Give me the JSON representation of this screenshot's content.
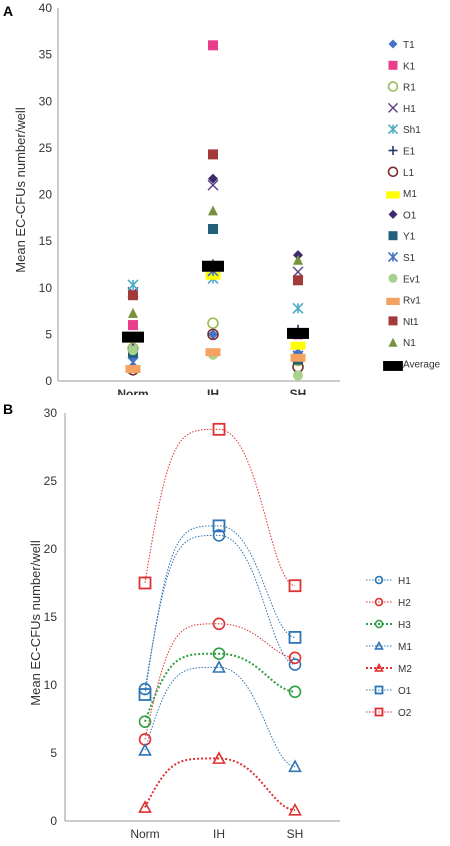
{
  "chart_data": [
    {
      "panel_letter": "A",
      "type": "scatter",
      "title": "",
      "xlabel": "",
      "ylabel": "Mean EC-CFUs number/well",
      "categories": [
        "Norm",
        "IH",
        "SH"
      ],
      "ylim": [
        0,
        40
      ],
      "yticks": [
        0,
        5,
        10,
        15,
        20,
        25,
        30,
        35,
        40
      ],
      "grid": false,
      "legend_position": "right",
      "series": [
        {
          "name": "T1",
          "marker": "diamond",
          "color": "#4472c4",
          "values": [
            2.5,
            5.0,
            3.0
          ]
        },
        {
          "name": "K1",
          "marker": "square",
          "color": "#e83e8c",
          "values": [
            6.0,
            36.0,
            5.0
          ]
        },
        {
          "name": "R1",
          "marker": "circle-open",
          "color": "#9bbb59",
          "values": [
            3.5,
            6.2,
            2.2
          ]
        },
        {
          "name": "H1",
          "marker": "x",
          "color": "#5b3f8a",
          "values": [
            9.5,
            21.0,
            11.7
          ]
        },
        {
          "name": "Sh1",
          "marker": "asterisk",
          "color": "#4bacc6",
          "values": [
            10.3,
            11.0,
            7.8
          ]
        },
        {
          "name": "E1",
          "marker": "plus",
          "color": "#1f3864",
          "values": [
            3.2,
            12.5,
            5.5
          ]
        },
        {
          "name": "L1",
          "marker": "circle-open",
          "color": "#7b2c2c",
          "values": [
            1.2,
            5.0,
            1.5
          ]
        },
        {
          "name": "M1",
          "marker": "dash",
          "color": "#ffff00",
          "values": [
            4.8,
            11.5,
            4.0
          ]
        },
        {
          "name": "O1",
          "marker": "diamond",
          "color": "#3f2a6b",
          "values": [
            3.5,
            21.7,
            13.5
          ]
        },
        {
          "name": "Y1",
          "marker": "square",
          "color": "#215f7a",
          "values": [
            3.0,
            16.3,
            2.3
          ]
        },
        {
          "name": "S1",
          "marker": "asterisk",
          "color": "#4472c4",
          "values": [
            2.0,
            11.8,
            2.7
          ]
        },
        {
          "name": "Ev1",
          "marker": "circle",
          "color": "#a9d18e",
          "values": [
            3.3,
            2.8,
            0.6
          ]
        },
        {
          "name": "Rv1",
          "marker": "dash",
          "color": "#f4a261",
          "values": [
            1.5,
            3.3,
            2.7
          ]
        },
        {
          "name": "Nt1",
          "marker": "square",
          "color": "#a33a3a",
          "values": [
            9.2,
            24.3,
            10.8
          ]
        },
        {
          "name": "N1",
          "marker": "triangle",
          "color": "#76923c",
          "values": [
            7.3,
            18.3,
            13.0
          ]
        },
        {
          "name": "Average",
          "marker": "bar",
          "color": "#000000",
          "values": [
            5.0,
            12.6,
            5.4
          ]
        }
      ]
    },
    {
      "panel_letter": "B",
      "type": "line",
      "title": "",
      "xlabel": "",
      "ylabel": "Mean EC-CFUs number/well",
      "categories": [
        "Norm",
        "IH",
        "SH"
      ],
      "ylim": [
        0,
        30
      ],
      "yticks": [
        0,
        5,
        10,
        15,
        20,
        25,
        30
      ],
      "grid": false,
      "legend_position": "right",
      "series": [
        {
          "name": "H1",
          "marker": "circle-open",
          "color": "#2e75b6",
          "line": "dotted",
          "values": [
            9.7,
            21.0,
            11.5
          ]
        },
        {
          "name": "H2",
          "marker": "circle-open",
          "color": "#e03030",
          "line": "dotted",
          "values": [
            6.0,
            14.5,
            12.0
          ]
        },
        {
          "name": "H3",
          "marker": "circle-open",
          "color": "#2ea043",
          "line": "dotted-heavy",
          "values": [
            7.3,
            12.3,
            9.5
          ]
        },
        {
          "name": "M1",
          "marker": "triangle-open",
          "color": "#2e75b6",
          "line": "dotted",
          "values": [
            5.2,
            11.3,
            4.0
          ]
        },
        {
          "name": "M2",
          "marker": "triangle-open",
          "color": "#e03030",
          "line": "dotted-heavy",
          "values": [
            1.0,
            4.6,
            0.8
          ]
        },
        {
          "name": "O1",
          "marker": "square-open",
          "color": "#2e75b6",
          "line": "dotted",
          "values": [
            9.3,
            21.7,
            13.5
          ]
        },
        {
          "name": "O2",
          "marker": "square-open",
          "color": "#e03030",
          "line": "dotted",
          "values": [
            17.5,
            28.8,
            17.3
          ]
        }
      ]
    }
  ]
}
